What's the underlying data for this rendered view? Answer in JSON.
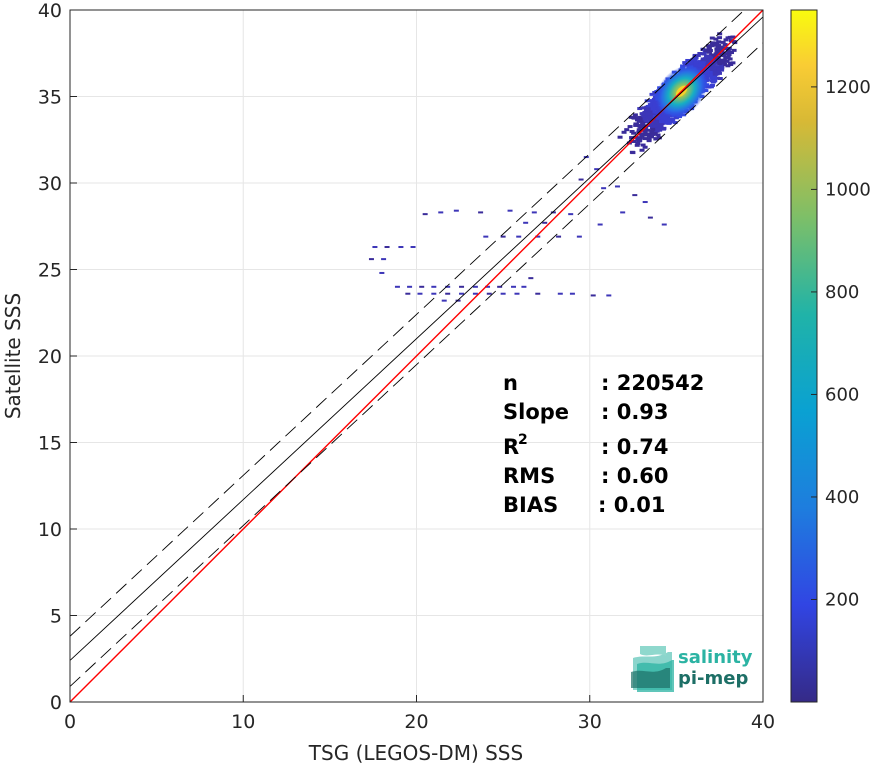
{
  "chart_data": {
    "type": "heatmap",
    "xlabel": "TSG (LEGOS-DM) SSS",
    "ylabel": "Satellite SSS",
    "xlim": [
      0,
      40
    ],
    "ylim": [
      0,
      40
    ],
    "xticks": [
      0,
      10,
      20,
      30,
      40
    ],
    "yticks": [
      0,
      5,
      10,
      15,
      20,
      25,
      30,
      35,
      40
    ],
    "grid": true,
    "colorbar": {
      "range": [
        0,
        1350
      ],
      "ticks": [
        200,
        400,
        600,
        800,
        1000,
        1200
      ],
      "colormap": "parula",
      "placement": "right"
    },
    "lines": [
      {
        "name": "",
        "kind": "identity",
        "color": "#ff0000",
        "style": "solid",
        "points": [
          [
            0,
            0
          ],
          [
            40,
            40
          ]
        ]
      },
      {
        "name": "",
        "kind": "fit",
        "color": "#000000",
        "style": "solid",
        "points": [
          [
            0,
            2.4
          ],
          [
            40,
            39.6
          ]
        ]
      },
      {
        "name": "",
        "kind": "fit-upper",
        "color": "#000000",
        "style": "dashed",
        "points": [
          [
            0,
            3.8
          ],
          [
            40,
            41.0
          ]
        ]
      },
      {
        "name": "",
        "kind": "fit-lower",
        "color": "#000000",
        "style": "dashed",
        "points": [
          [
            0,
            0.9
          ],
          [
            40,
            38.1
          ]
        ]
      }
    ],
    "density": {
      "core": {
        "x": 35.3,
        "y": 35.3,
        "peak": 1300
      },
      "main_cluster": {
        "x_range": [
          30.5,
          38.3
        ],
        "y_range": [
          29.5,
          39.2
        ]
      },
      "scatter_bins": [
        [
          20.5,
          28.2
        ],
        [
          21.4,
          28.3
        ],
        [
          22.3,
          28.4
        ],
        [
          23.7,
          28.3
        ],
        [
          25.4,
          28.4
        ],
        [
          26.8,
          28.3
        ],
        [
          27.9,
          28.3
        ],
        [
          28.9,
          28.2
        ],
        [
          26.3,
          27.7
        ],
        [
          27.4,
          27.7
        ],
        [
          30.6,
          27.6
        ],
        [
          24.0,
          26.9
        ],
        [
          25.0,
          26.9
        ],
        [
          25.9,
          26.9
        ],
        [
          27.0,
          26.9
        ],
        [
          28.2,
          26.9
        ],
        [
          29.4,
          26.9
        ],
        [
          17.6,
          26.3
        ],
        [
          18.3,
          26.3
        ],
        [
          19.1,
          26.3
        ],
        [
          19.8,
          26.3
        ],
        [
          17.4,
          25.6
        ],
        [
          18.1,
          25.6
        ],
        [
          18.0,
          24.8
        ],
        [
          26.6,
          24.5
        ],
        [
          18.9,
          24.0
        ],
        [
          19.6,
          24.0
        ],
        [
          20.3,
          24.0
        ],
        [
          21.0,
          24.0
        ],
        [
          21.8,
          24.0
        ],
        [
          22.6,
          24.0
        ],
        [
          23.4,
          24.0
        ],
        [
          24.1,
          24.0
        ],
        [
          24.8,
          24.0
        ],
        [
          25.6,
          24.0
        ],
        [
          26.2,
          24.0
        ],
        [
          19.5,
          23.6
        ],
        [
          20.2,
          23.6
        ],
        [
          21.0,
          23.6
        ],
        [
          21.8,
          23.6
        ],
        [
          22.6,
          23.6
        ],
        [
          23.4,
          23.6
        ],
        [
          24.2,
          23.6
        ],
        [
          25.0,
          23.6
        ],
        [
          25.8,
          23.6
        ],
        [
          27.0,
          23.6
        ],
        [
          28.3,
          23.6
        ],
        [
          29.0,
          23.6
        ],
        [
          30.2,
          23.5
        ],
        [
          31.1,
          23.5
        ],
        [
          21.6,
          23.2
        ],
        [
          22.4,
          23.2
        ],
        [
          29.8,
          31.5
        ],
        [
          30.4,
          30.8
        ],
        [
          29.5,
          30.2
        ],
        [
          30.8,
          29.7
        ],
        [
          31.6,
          29.8
        ],
        [
          32.6,
          29.3
        ],
        [
          33.2,
          28.9
        ],
        [
          31.9,
          28.3
        ],
        [
          33.5,
          28.0
        ],
        [
          34.3,
          27.6
        ]
      ]
    },
    "stats": [
      {
        "label": "n",
        "value": ": 220542"
      },
      {
        "label": "Slope",
        "value": ": 0.93"
      },
      {
        "label": "R",
        "sup": "2",
        "value": ": 0.74"
      },
      {
        "label": "RMS",
        "value": ": 0.60"
      },
      {
        "label": "BIAS",
        "value": ": 0.01"
      }
    ]
  },
  "logo": {
    "line1": "salinity",
    "line2": "pi-mep",
    "color_primary": "#2bb3a3",
    "color_secondary": "#1d6f66"
  }
}
